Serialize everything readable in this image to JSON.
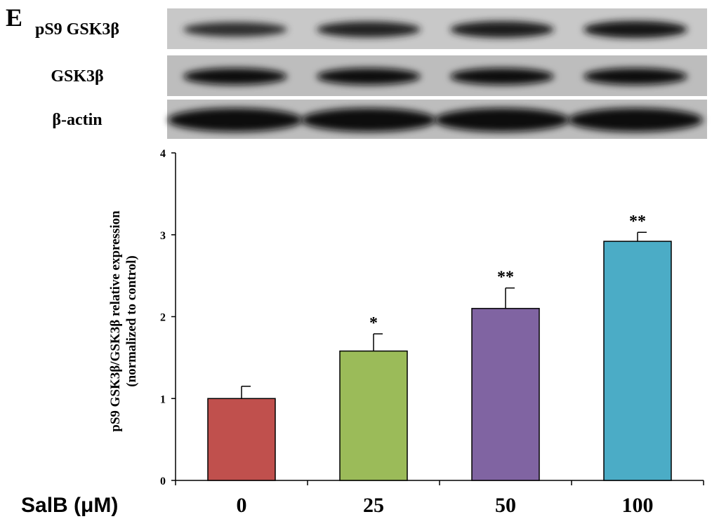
{
  "panel_letter": "E",
  "blot": {
    "rows": [
      {
        "label": "pS9 GSK3β",
        "intensity": [
          0.55,
          0.7,
          0.8,
          0.88
        ]
      },
      {
        "label": "GSK3β",
        "intensity": [
          0.95,
          0.92,
          0.95,
          0.95
        ]
      },
      {
        "label": "β-actin",
        "intensity": [
          1.0,
          1.0,
          1.0,
          1.0
        ]
      }
    ]
  },
  "chart_data": {
    "type": "bar",
    "categories": [
      "0",
      "25",
      "50",
      "100"
    ],
    "values": [
      1.0,
      1.58,
      2.1,
      2.92
    ],
    "errors": [
      0.15,
      0.21,
      0.25,
      0.11
    ],
    "significance": [
      "",
      "*",
      "**",
      "**"
    ],
    "colors": [
      "#c0504d",
      "#9bbb59",
      "#8064a2",
      "#4bacc6"
    ],
    "ylabel_line1": "pS9 GSK3β/GSK3β relative expression",
    "ylabel_line2": "(normalized to control)",
    "xlabel": "SalB (μM)",
    "yticks": [
      0,
      1,
      2,
      3,
      4
    ],
    "ylim": [
      0,
      4
    ],
    "grid": false
  }
}
